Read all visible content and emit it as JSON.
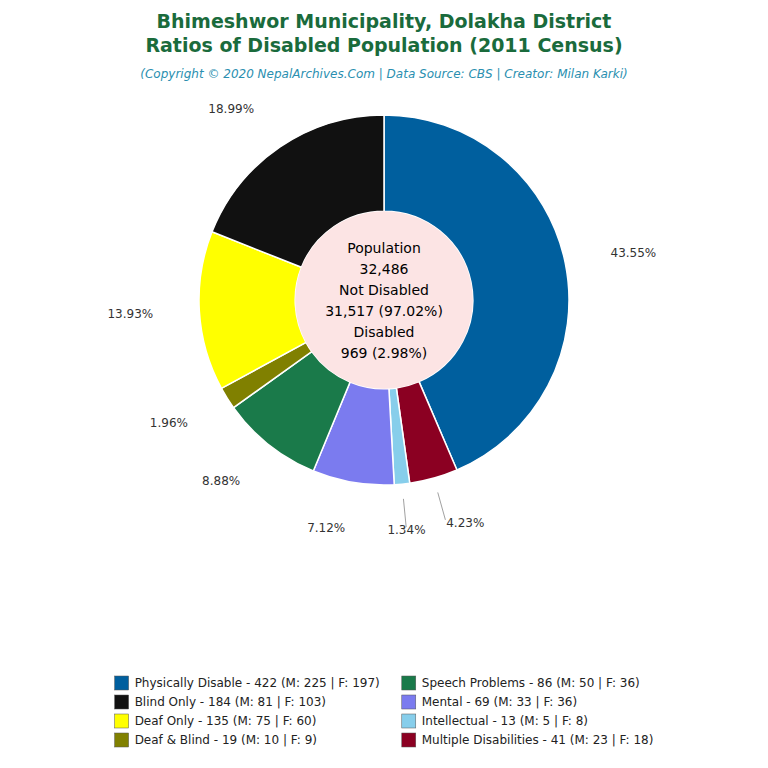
{
  "chart_data": {
    "type": "donut",
    "title": [
      "Bhimeshwor Municipality, Dolakha District",
      "Ratios of Disabled Population (2011 Census)"
    ],
    "subtitle": "(Copyright © 2020 NepalArchives.Com | Data Source: CBS | Creator: Milan Karki)",
    "categories": [
      "Physically Disable - 422 (M: 225 | F: 197)",
      "Multiple Disabilities - 41 (M: 23 | F: 18)",
      "Intellectual - 13 (M: 5 | F: 8)",
      "Mental - 69 (M: 33 | F: 36)",
      "Speech Problems - 86 (M: 50 | F: 36)",
      "Deaf & Blind - 19 (M: 10 | F: 9)",
      "Deaf Only - 135 (M: 75 | F: 60)",
      "Blind Only - 184 (M: 81 | F: 103)"
    ],
    "values": [
      43.55,
      4.23,
      1.34,
      7.12,
      8.88,
      1.96,
      13.93,
      18.99
    ],
    "value_labels": [
      "43.55%",
      "4.23%",
      "1.34%",
      "7.12%",
      "8.88%",
      "1.96%",
      "13.93%",
      "18.99%"
    ],
    "colors": [
      "#005f9e",
      "#8b0022",
      "#87ceeb",
      "#7b7bef",
      "#1a7a4a",
      "#808000",
      "#ffff00",
      "#111111"
    ],
    "data_labels": true,
    "legend": "bottom",
    "annotations": [
      "Population",
      "32,486",
      "Not Disabled",
      "31,517 (97.02%)",
      "Disabled",
      "969 (2.98%)"
    ]
  }
}
